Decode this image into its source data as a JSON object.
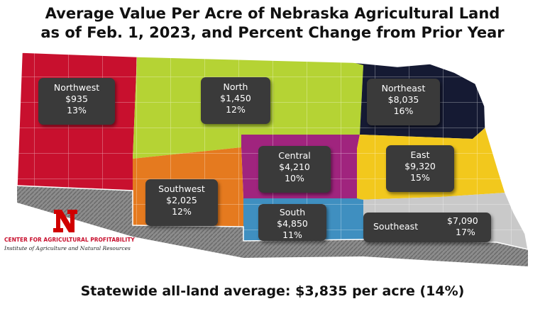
{
  "title": {
    "line1": "Average Value Per Acre of Nebraska Agricultural Land",
    "line2": "as of Feb. 1, 2023, and Percent Change from Prior Year"
  },
  "footer": "Statewide all-land average: $3,835 per acre (14%)",
  "logo": {
    "letter": "N",
    "line1": "CENTER FOR AGRICULTURAL PROFITABILITY",
    "line2": "Institute of Agriculture and Natural Resources"
  },
  "regions": {
    "northwest": {
      "name": "Northwest",
      "value": "$935",
      "change": "13%",
      "color": "#c8102e"
    },
    "north": {
      "name": "North",
      "value": "$1,450",
      "change": "12%",
      "color": "#b5d334"
    },
    "northeast": {
      "name": "Northeast",
      "value": "$8,035",
      "change": "16%",
      "color": "#151a33"
    },
    "central": {
      "name": "Central",
      "value": "$4,210",
      "change": "10%",
      "color": "#a0247e"
    },
    "east": {
      "name": "East",
      "value": "$9,320",
      "change": "15%",
      "color": "#f2c81d"
    },
    "southwest": {
      "name": "Southwest",
      "value": "$2,025",
      "change": "12%",
      "color": "#e57a1f"
    },
    "south": {
      "name": "South",
      "value": "$4,850",
      "change": "11%",
      "color": "#3f8fc0"
    },
    "southeast": {
      "name": "Southeast",
      "value": "$7,090",
      "change": "17%",
      "color": "#c9c9c9"
    }
  }
}
